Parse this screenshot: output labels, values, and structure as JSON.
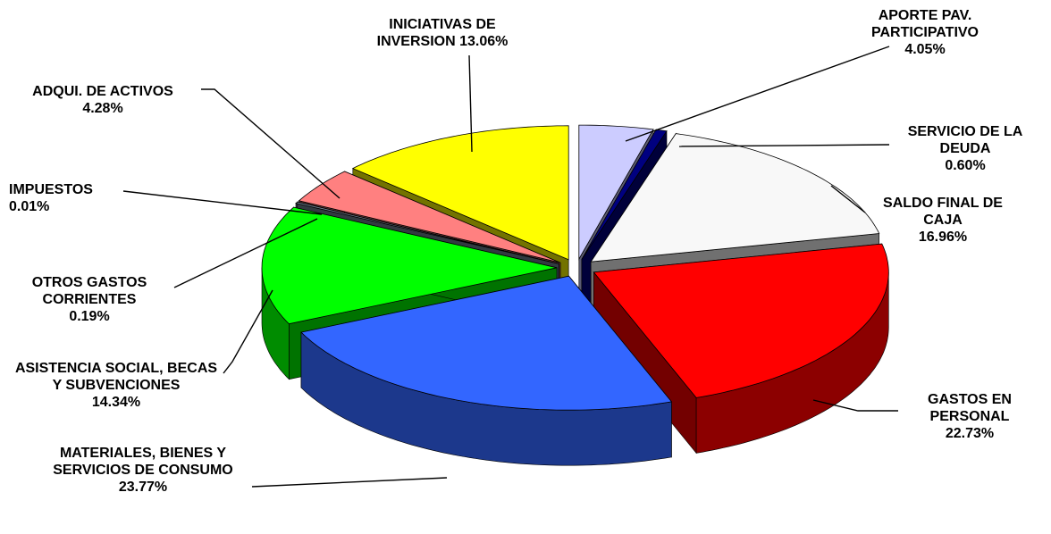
{
  "chart_data": {
    "type": "pie3d",
    "categories": [
      "APORTE PAV. PARTICIPATIVO",
      "SERVICIO DE LA DEUDA",
      "SALDO FINAL DE CAJA",
      "GASTOS EN PERSONAL",
      "MATERIALES, BIENES Y SERVICIOS DE CONSUMO",
      "ASISTENCIA SOCIAL, BECAS Y SUBVENCIONES",
      "OTROS GASTOS CORRIENTES",
      "IMPUESTOS",
      "ADQUI. DE ACTIVOS",
      "INICIATIVAS DE INVERSION"
    ],
    "values": [
      4.05,
      0.6,
      16.96,
      22.73,
      23.77,
      14.34,
      0.19,
      0.01,
      4.28,
      13.06
    ],
    "value_labels": [
      "4.05%",
      "0.60%",
      "16.96%",
      "22.73%",
      "23.77%",
      "14.34%",
      "0.19%",
      "0.01%",
      "4.28%",
      "13.06%"
    ],
    "colors": [
      "#ccccff",
      "#000080",
      "#f8f8f8",
      "#ff0000",
      "#3366ff",
      "#00ff00",
      "#6f8090",
      "#993366",
      "#ff8080",
      "#ffff00"
    ]
  }
}
